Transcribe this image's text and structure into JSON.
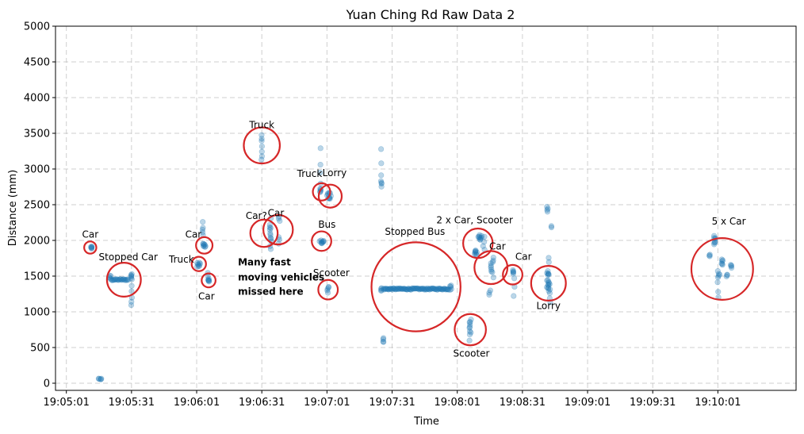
{
  "chart_data": {
    "type": "scatter",
    "title": "Yuan Ching Rd Raw Data 2",
    "xlabel": "Time",
    "ylabel": "Distance (mm)",
    "xlim_seconds_of_day": [
      68696,
      69037
    ],
    "ylim": [
      -100,
      5000
    ],
    "x_ticks": [
      "19:05:01",
      "19:05:31",
      "19:06:01",
      "19:06:31",
      "19:07:01",
      "19:07:31",
      "19:08:01",
      "19:08:31",
      "19:09:01",
      "19:09:31",
      "19:10:01"
    ],
    "x_tick_seconds": [
      68701,
      68731,
      68761,
      68791,
      68821,
      68851,
      68881,
      68911,
      68941,
      68971,
      69001
    ],
    "y_ticks": [
      0,
      500,
      1000,
      1500,
      2000,
      2500,
      3000,
      3500,
      4000,
      4500,
      5000
    ],
    "grid": true,
    "point_color": "#1f77b4",
    "circle_color": "#d62728",
    "clusters": [
      {
        "t": 68712.5,
        "d": 1900,
        "dt": 0.4,
        "dd": 15,
        "n": 6
      },
      {
        "t": 68716.5,
        "d": 60,
        "dt": 0.8,
        "dd": 5,
        "n": 5
      },
      {
        "t": 68721.0,
        "d": 1490,
        "dt": 0.6,
        "dd": 20,
        "n": 4
      },
      {
        "t": 68725.5,
        "d": 1450,
        "dt": 4.0,
        "dd": 10,
        "n": 22
      },
      {
        "t": 68731.0,
        "d": 1500,
        "dt": 0.4,
        "dd": 40,
        "n": 6
      },
      {
        "t": 68731.0,
        "d": 1150,
        "dt": 0.3,
        "dd": 50,
        "n": 3
      },
      {
        "t": 68731.0,
        "d": 1320,
        "dt": 0.3,
        "dd": 40,
        "n": 2
      },
      {
        "t": 68762.0,
        "d": 1660,
        "dt": 0.8,
        "dd": 30,
        "n": 8
      },
      {
        "t": 68764.5,
        "d": 1930,
        "dt": 0.6,
        "dd": 25,
        "n": 8
      },
      {
        "t": 68764.0,
        "d": 2120,
        "dt": 0.6,
        "dd": 60,
        "n": 4
      },
      {
        "t": 68764.0,
        "d": 2260,
        "dt": 0.2,
        "dd": 10,
        "n": 1
      },
      {
        "t": 68766.5,
        "d": 1440,
        "dt": 0.4,
        "dd": 20,
        "n": 6
      },
      {
        "t": 68766.0,
        "d": 1520,
        "dt": 0.4,
        "dd": 20,
        "n": 2
      },
      {
        "t": 68791.0,
        "d": 3350,
        "dt": 0.2,
        "dd": 140,
        "n": 6
      },
      {
        "t": 68791.0,
        "d": 3130,
        "dt": 0.2,
        "dd": 10,
        "n": 1
      },
      {
        "t": 68795.0,
        "d": 2130,
        "dt": 0.4,
        "dd": 160,
        "n": 10
      },
      {
        "t": 68795.0,
        "d": 1900,
        "dt": 0.3,
        "dd": 20,
        "n": 2
      },
      {
        "t": 68799.0,
        "d": 2300,
        "dt": 0.3,
        "dd": 25,
        "n": 3
      },
      {
        "t": 68799.0,
        "d": 2000,
        "dt": 0.4,
        "dd": 40,
        "n": 3
      },
      {
        "t": 68818.0,
        "d": 2700,
        "dt": 0.3,
        "dd": 30,
        "n": 5
      },
      {
        "t": 68818.0,
        "d": 2950,
        "dt": 0.2,
        "dd": 120,
        "n": 3
      },
      {
        "t": 68818.0,
        "d": 3290,
        "dt": 0.1,
        "dd": 10,
        "n": 1
      },
      {
        "t": 68818.5,
        "d": 1980,
        "dt": 1.0,
        "dd": 20,
        "n": 9
      },
      {
        "t": 68821.5,
        "d": 1310,
        "dt": 0.5,
        "dd": 40,
        "n": 5
      },
      {
        "t": 68822.0,
        "d": 2620,
        "dt": 1.0,
        "dd": 50,
        "n": 10
      },
      {
        "t": 68846.0,
        "d": 1310,
        "dt": 0.2,
        "dd": 20,
        "n": 4
      },
      {
        "t": 68846.0,
        "d": 2800,
        "dt": 0.2,
        "dd": 40,
        "n": 4
      },
      {
        "t": 68846.0,
        "d": 3000,
        "dt": 0.1,
        "dd": 80,
        "n": 2
      },
      {
        "t": 68846.0,
        "d": 3280,
        "dt": 0.1,
        "dd": 10,
        "n": 1
      },
      {
        "t": 68847.0,
        "d": 600,
        "dt": 0.2,
        "dd": 30,
        "n": 4
      },
      {
        "t": 68862.0,
        "d": 1320,
        "dt": 15.0,
        "dd": 10,
        "n": 90
      },
      {
        "t": 68878.0,
        "d": 1340,
        "dt": 0.4,
        "dd": 30,
        "n": 5
      },
      {
        "t": 68887.0,
        "d": 780,
        "dt": 0.4,
        "dd": 150,
        "n": 10
      },
      {
        "t": 68889.5,
        "d": 1830,
        "dt": 0.6,
        "dd": 30,
        "n": 8
      },
      {
        "t": 68891.5,
        "d": 2040,
        "dt": 1.2,
        "dd": 30,
        "n": 9
      },
      {
        "t": 68893.0,
        "d": 1950,
        "dt": 0.6,
        "dd": 80,
        "n": 4
      },
      {
        "t": 68897.0,
        "d": 1640,
        "dt": 0.7,
        "dd": 130,
        "n": 10
      },
      {
        "t": 68896.0,
        "d": 1270,
        "dt": 0.5,
        "dd": 30,
        "n": 3
      },
      {
        "t": 68906.5,
        "d": 1560,
        "dt": 0.6,
        "dd": 30,
        "n": 5
      },
      {
        "t": 68907.0,
        "d": 1350,
        "dt": 0.4,
        "dd": 100,
        "n": 3
      },
      {
        "t": 68923.0,
        "d": 1430,
        "dt": 0.8,
        "dd": 120,
        "n": 18
      },
      {
        "t": 68923.5,
        "d": 1200,
        "dt": 0.4,
        "dd": 60,
        "n": 3
      },
      {
        "t": 68922.5,
        "d": 2440,
        "dt": 0.3,
        "dd": 30,
        "n": 4
      },
      {
        "t": 68923.0,
        "d": 1720,
        "dt": 0.3,
        "dd": 30,
        "n": 2
      },
      {
        "t": 68924.5,
        "d": 2190,
        "dt": 0.2,
        "dd": 10,
        "n": 2
      },
      {
        "t": 68997.0,
        "d": 1790,
        "dt": 0.4,
        "dd": 10,
        "n": 3
      },
      {
        "t": 68999.5,
        "d": 2000,
        "dt": 0.4,
        "dd": 70,
        "n": 8
      },
      {
        "t": 69001.0,
        "d": 1400,
        "dt": 0.3,
        "dd": 180,
        "n": 5
      },
      {
        "t": 69001.5,
        "d": 1520,
        "dt": 0.4,
        "dd": 15,
        "n": 3
      },
      {
        "t": 69003.0,
        "d": 1690,
        "dt": 0.3,
        "dd": 40,
        "n": 6
      },
      {
        "t": 69005.0,
        "d": 1510,
        "dt": 0.3,
        "dd": 15,
        "n": 3
      },
      {
        "t": 69007.0,
        "d": 1640,
        "dt": 0.3,
        "dd": 20,
        "n": 4
      }
    ],
    "annotations": [
      {
        "label": "Car",
        "circle": {
          "t": 68712.0,
          "d": 1900,
          "r_s": 2.8
        },
        "text_at": {
          "t": 68712.0,
          "d": 2040
        }
      },
      {
        "label": "Stopped Car",
        "circle": {
          "t": 68727.5,
          "d": 1450,
          "r_s": 7.8
        },
        "text_at": {
          "t": 68729.5,
          "d": 1720
        }
      },
      {
        "label": "Car",
        "circle": {
          "t": 68764.5,
          "d": 1930,
          "r_s": 3.8
        },
        "text_at": {
          "t": 68759.5,
          "d": 2040
        }
      },
      {
        "label": "Truck",
        "circle": {
          "t": 68762.0,
          "d": 1670,
          "r_s": 3.3
        },
        "text_at": {
          "t": 68754.0,
          "d": 1690
        }
      },
      {
        "label": "Car",
        "circle": {
          "t": 68766.5,
          "d": 1440,
          "r_s": 3.2
        },
        "text_at": {
          "t": 68765.5,
          "d": 1170
        }
      },
      {
        "label": "Many fast",
        "bold": true,
        "text_at": {
          "t": 68780.0,
          "d": 1650
        }
      },
      {
        "label": "moving vehicles",
        "bold": true,
        "text_at": {
          "t": 68780.0,
          "d": 1440
        }
      },
      {
        "label": "missed here",
        "bold": true,
        "text_at": {
          "t": 68780.0,
          "d": 1240
        }
      },
      {
        "label": "Truck",
        "circle": {
          "t": 68791.0,
          "d": 3330,
          "r_s": 8.3
        },
        "text_at": {
          "t": 68791.0,
          "d": 3570
        }
      },
      {
        "label": "Car?",
        "circle": {
          "t": 68792.0,
          "d": 2100,
          "r_s": 6.3
        },
        "text_at": {
          "t": 68788.5,
          "d": 2300
        }
      },
      {
        "label": "Car",
        "circle": {
          "t": 68798.5,
          "d": 2150,
          "r_s": 6.8
        },
        "text_at": {
          "t": 68797.5,
          "d": 2340
        }
      },
      {
        "label": "Truck",
        "circle": {
          "t": 68818.5,
          "d": 2680,
          "r_s": 4.0
        },
        "text_at": {
          "t": 68813.0,
          "d": 2890
        }
      },
      {
        "label": "Lorry",
        "circle": {
          "t": 68822.5,
          "d": 2620,
          "r_s": 5.3
        },
        "text_at": {
          "t": 68824.5,
          "d": 2900
        }
      },
      {
        "label": "Bus",
        "circle": {
          "t": 68818.5,
          "d": 1990,
          "r_s": 4.5
        },
        "text_at": {
          "t": 68821.0,
          "d": 2180
        }
      },
      {
        "label": "Scooter",
        "circle": {
          "t": 68821.5,
          "d": 1310,
          "r_s": 4.5
        },
        "text_at": {
          "t": 68823.0,
          "d": 1500
        }
      },
      {
        "label": "Stopped Bus",
        "circle": {
          "t": 68862.0,
          "d": 1350,
          "r_s": 20.5
        },
        "text_at": {
          "t": 68861.5,
          "d": 2080
        }
      },
      {
        "label": "Scooter",
        "circle": {
          "t": 68887.0,
          "d": 750,
          "r_s": 7.2
        },
        "text_at": {
          "t": 68887.5,
          "d": 370
        }
      },
      {
        "label": "2 x Car, Scooter",
        "circle": {
          "t": 68890.5,
          "d": 1960,
          "r_s": 6.8
        },
        "text_at": {
          "t": 68889.0,
          "d": 2240
        }
      },
      {
        "label": "Car",
        "circle": {
          "t": 68896.5,
          "d": 1620,
          "r_s": 7.6
        },
        "text_at": {
          "t": 68899.5,
          "d": 1870
        }
      },
      {
        "label": "Car",
        "circle": {
          "t": 68906.5,
          "d": 1520,
          "r_s": 4.5
        },
        "text_at": {
          "t": 68911.5,
          "d": 1730
        }
      },
      {
        "label": "Lorry",
        "circle": {
          "t": 68923.0,
          "d": 1400,
          "r_s": 8.0
        },
        "text_at": {
          "t": 68923.0,
          "d": 1040
        }
      },
      {
        "label": "5 x Car",
        "circle": {
          "t": 69003.0,
          "d": 1600,
          "r_s": 14.2
        },
        "text_at": {
          "t": 69006.0,
          "d": 2220
        }
      }
    ]
  }
}
